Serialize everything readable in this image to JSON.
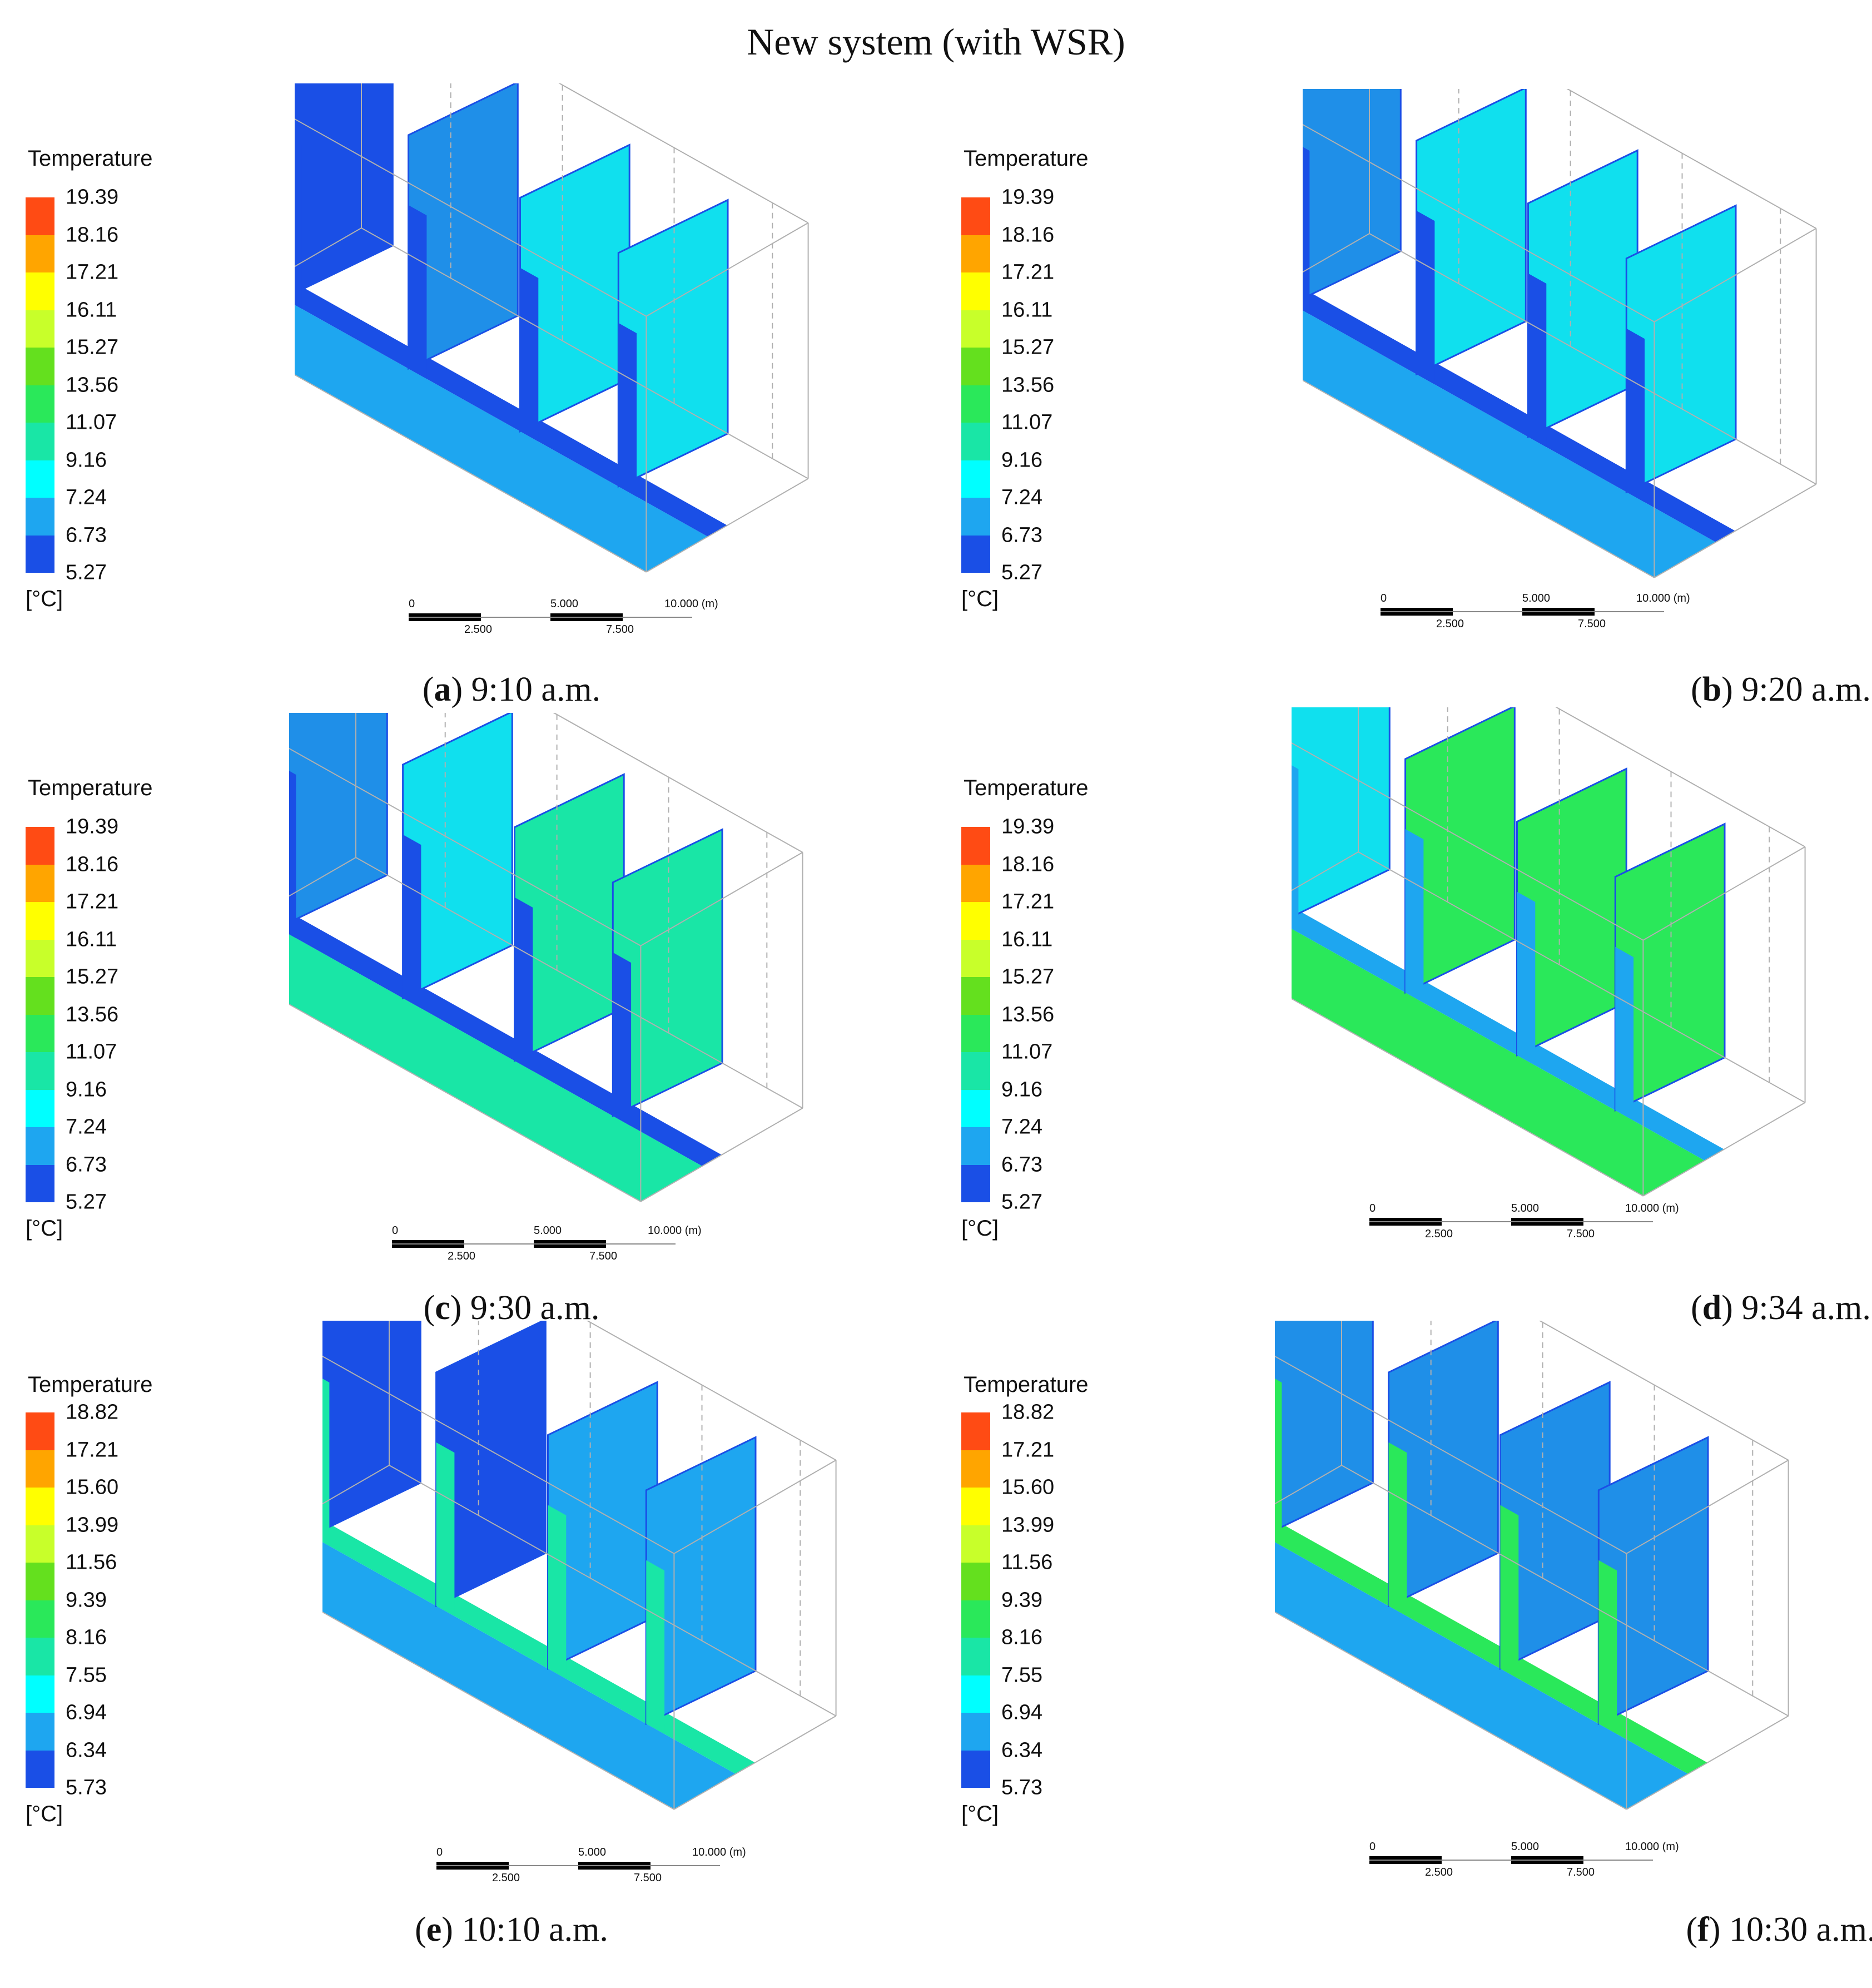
{
  "title": "New system (with WSR)",
  "colors": {
    "wall_blue": "#1a4fe6",
    "mid_blue": "#1f8fe8",
    "light_blue": "#1ea6f0",
    "cyan": "#10e0ee",
    "aqua": "#00ffff",
    "teal_green": "#19e6a6",
    "green": "#2ae85a",
    "yellow_green": "#9ee62a",
    "edge_gray": "#b0b0b0",
    "edge_red": "#e03020"
  },
  "legends": {
    "a": {
      "title": "Temperature",
      "unit": "[°C]",
      "ticks": [
        "19.39",
        "18.16",
        "17.21",
        "16.11",
        "15.27",
        "13.56",
        "11.07",
        "9.16",
        "7.24",
        "6.73",
        "5.27"
      ],
      "colors": [
        "#ff4b14",
        "#ffa500",
        "#ffff00",
        "#c8ff2a",
        "#64e01e",
        "#2ae85a",
        "#19e6a6",
        "#00ffff",
        "#1ea6f0",
        "#1a4fe6"
      ]
    },
    "b": {
      "title": "Temperature",
      "unit": "[°C]",
      "ticks": [
        "19.39",
        "18.16",
        "17.21",
        "16.11",
        "15.27",
        "13.56",
        "11.07",
        "9.16",
        "7.24",
        "6.73",
        "5.27"
      ],
      "colors": [
        "#ff4b14",
        "#ffa500",
        "#ffff00",
        "#c8ff2a",
        "#64e01e",
        "#2ae85a",
        "#19e6a6",
        "#00ffff",
        "#1ea6f0",
        "#1a4fe6"
      ]
    },
    "c": {
      "title": "Temperature",
      "unit": "[°C]",
      "ticks": [
        "19.39",
        "18.16",
        "17.21",
        "16.11",
        "15.27",
        "13.56",
        "11.07",
        "9.16",
        "7.24",
        "6.73",
        "5.27"
      ],
      "colors": [
        "#ff4b14",
        "#ffa500",
        "#ffff00",
        "#c8ff2a",
        "#64e01e",
        "#2ae85a",
        "#19e6a6",
        "#00ffff",
        "#1ea6f0",
        "#1a4fe6"
      ]
    },
    "d": {
      "title": "Temperature",
      "unit": "[°C]",
      "ticks": [
        "19.39",
        "18.16",
        "17.21",
        "16.11",
        "15.27",
        "13.56",
        "11.07",
        "9.16",
        "7.24",
        "6.73",
        "5.27"
      ],
      "colors": [
        "#ff4b14",
        "#ffa500",
        "#ffff00",
        "#c8ff2a",
        "#64e01e",
        "#2ae85a",
        "#19e6a6",
        "#00ffff",
        "#1ea6f0",
        "#1a4fe6"
      ]
    },
    "e": {
      "title": "Temperature",
      "unit": "[°C]",
      "ticks": [
        "18.82",
        "17.21",
        "15.60",
        "13.99",
        "11.56",
        "9.39",
        "8.16",
        "7.55",
        "6.94",
        "6.34",
        "5.73"
      ],
      "colors": [
        "#ff4b14",
        "#ffa500",
        "#ffff00",
        "#c8ff2a",
        "#64e01e",
        "#2ae85a",
        "#19e6a6",
        "#00ffff",
        "#1ea6f0",
        "#1a4fe6"
      ]
    },
    "f": {
      "title": "Temperature",
      "unit": "[°C]",
      "ticks": [
        "18.82",
        "17.21",
        "15.60",
        "13.99",
        "11.56",
        "9.39",
        "8.16",
        "7.55",
        "6.94",
        "6.34",
        "5.73"
      ],
      "colors": [
        "#ff4b14",
        "#ffa500",
        "#ffff00",
        "#c8ff2a",
        "#64e01e",
        "#2ae85a",
        "#19e6a6",
        "#00ffff",
        "#1ea6f0",
        "#1a4fe6"
      ]
    }
  },
  "scale_labels": {
    "top": [
      "0",
      "5.000",
      "10.000  (m)"
    ],
    "bottom": [
      "2.500",
      "7.500"
    ]
  },
  "captions": {
    "a": {
      "letter": "a",
      "time": " 9:10 a.m."
    },
    "b": {
      "letter": "b",
      "time": " 9:20 a.m."
    },
    "c": {
      "letter": "c",
      "time": " 9:30 a.m."
    },
    "d": {
      "letter": "d",
      "time": " 9:34 a.m."
    },
    "e": {
      "letter": "e",
      "time": " 10:10 a.m."
    },
    "f": {
      "letter": "f",
      "time": " 10:30 a.m."
    }
  },
  "panels": {
    "a": {
      "floor": "#1ea6f0",
      "walls": [
        "#1a4fe6",
        "#1f8fe8",
        "#10e0ee",
        "#10e0ee"
      ],
      "front": "#1a4fe6"
    },
    "b": {
      "floor": "#1ea6f0",
      "walls": [
        "#1f8fe8",
        "#10e0ee",
        "#10e0ee",
        "#10e0ee"
      ],
      "front": "#1a4fe6"
    },
    "c": {
      "floor": "#19e6a6",
      "walls": [
        "#1f8fe8",
        "#10e0ee",
        "#19e6a6",
        "#19e6a6"
      ],
      "front": "#1a4fe6"
    },
    "d": {
      "floor": "#2ae85a",
      "walls": [
        "#10e0ee",
        "#2ae85a",
        "#2ae85a",
        "#2ae85a"
      ],
      "front": "#1ea6f0"
    },
    "e": {
      "floor": "#1ea6f0",
      "walls": [
        "#1a4fe6",
        "#1a4fe6",
        "#1ea6f0",
        "#1ea6f0"
      ],
      "front": "#19e6a6"
    },
    "f": {
      "floor": "#1ea6f0",
      "walls": [
        "#1f8fe8",
        "#1f8fe8",
        "#1f8fe8",
        "#1f8fe8"
      ],
      "front": "#2ae85a"
    }
  }
}
